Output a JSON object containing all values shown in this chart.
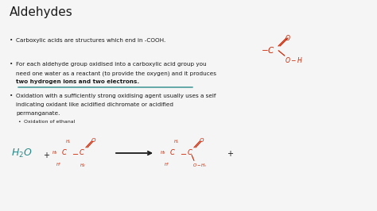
{
  "title": "Aldehydes",
  "bg_color": "#f5f5f5",
  "text_color": "#1a1a1a",
  "red_color": "#cc2200",
  "teal_color": "#2a8a8a",
  "bullet1": "Carboxylic acids are structures which end in -COOH.",
  "bullet2_line1": "For each aldehyde group oxidised into a carboxylic acid group you",
  "bullet2_line2": "need one water as a reactant (to provide the oxygen) and it produces",
  "bullet2_line3": "two hydrogen ions and two electrons.",
  "bullet3_line1": "Oxidation with a sufficiently strong oxidising agent usually uses a self",
  "bullet3_line2": "indicating oxidant like acidified dichromate or acidified",
  "bullet3_line3": "permanganate.",
  "sub_bullet": "Oxidation of ethanal",
  "fs_title": 11,
  "fs_body": 5.2,
  "fs_small": 4.5,
  "fs_chem_large": 6.0,
  "fs_chem_small": 3.8
}
